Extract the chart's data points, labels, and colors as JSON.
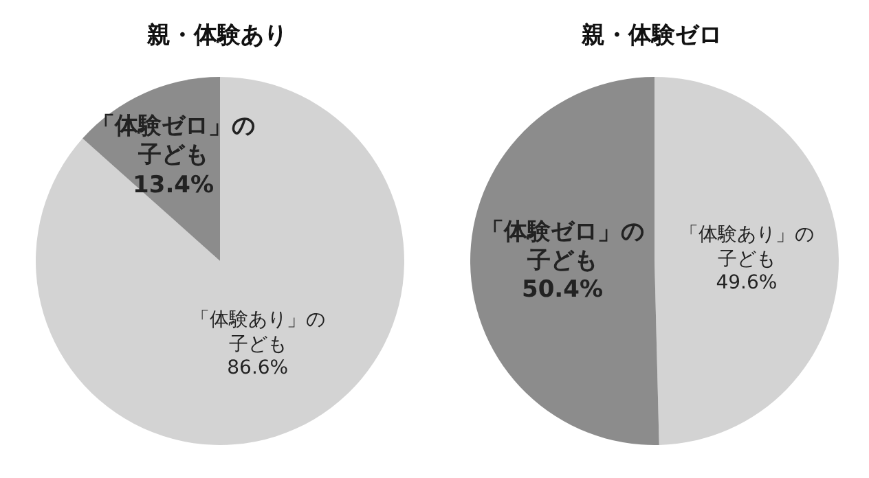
{
  "chart_data": [
    {
      "type": "pie",
      "title": "親・体験あり",
      "categories": [
        "「体験あり」の子ども",
        "「体験ゼロ」の子ども"
      ],
      "values": [
        86.6,
        13.4
      ],
      "colors": [
        "#d3d3d3",
        "#8c8c8c"
      ],
      "value_labels": [
        "86.6%",
        "13.4%"
      ]
    },
    {
      "type": "pie",
      "title": "親・体験ゼロ",
      "categories": [
        "「体験あり」の子ども",
        "「体験ゼロ」の子ども"
      ],
      "values": [
        49.6,
        50.4
      ],
      "colors": [
        "#d3d3d3",
        "#8c8c8c"
      ],
      "value_labels": [
        "49.6%",
        "50.4%"
      ]
    }
  ]
}
